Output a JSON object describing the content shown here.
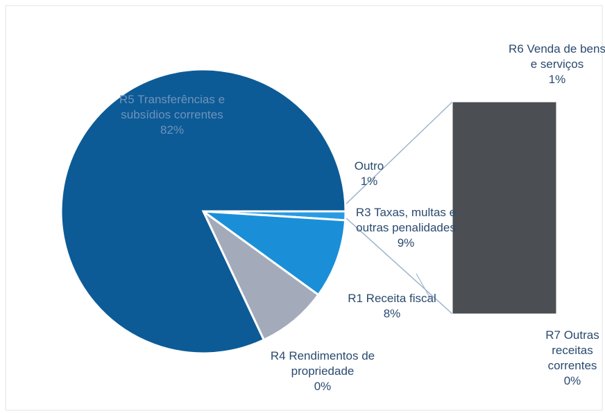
{
  "chart_data": {
    "type": "pie-of-bar",
    "slices": [
      {
        "name": "Outro",
        "value": 1,
        "value_label": "1%",
        "color": "#2a9be3"
      },
      {
        "name": "R3 Taxas, multas e outras penalidades",
        "value": 9,
        "value_label": "9%",
        "color": "#1a8fd8"
      },
      {
        "name": "R1 Receita fiscal",
        "value": 8,
        "value_label": "8%",
        "color": "#a3abbb"
      },
      {
        "name": "R4 Rendimentos de propriedade",
        "value": 0,
        "value_label": "0%",
        "color": "#a3abbb"
      },
      {
        "name": "R5 Transferências e subsídios correntes",
        "value": 82,
        "value_label": "82%",
        "color": "#0c5b96"
      }
    ],
    "bar": [
      {
        "name": "R6 Venda de bens e serviços",
        "value": 1,
        "value_label": "1%",
        "color": "#4b4e53"
      },
      {
        "name": "R7 Outras receitas correntes",
        "value": 0,
        "value_label": "0%",
        "color": "#4b4e53"
      }
    ]
  }
}
